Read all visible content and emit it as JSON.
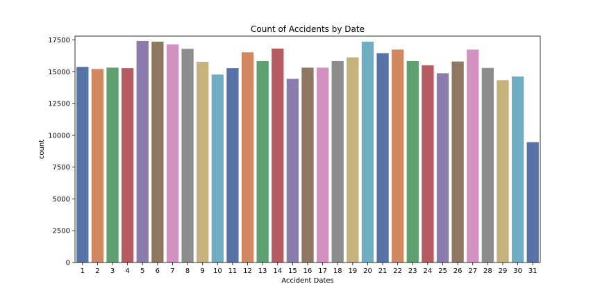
{
  "chart_data": {
    "type": "bar",
    "title": "Count of Accidents by Date",
    "xlabel": "Accident Dates",
    "ylabel": "count",
    "ylim": [
      0,
      17800
    ],
    "yticks": [
      0,
      2500,
      5000,
      7500,
      10000,
      12500,
      15000,
      17500
    ],
    "grid": false,
    "categories": [
      "1",
      "2",
      "3",
      "4",
      "5",
      "6",
      "7",
      "8",
      "9",
      "10",
      "11",
      "12",
      "13",
      "14",
      "15",
      "16",
      "17",
      "18",
      "19",
      "20",
      "21",
      "22",
      "23",
      "24",
      "25",
      "26",
      "27",
      "28",
      "29",
      "30",
      "31"
    ],
    "values": [
      15380,
      15220,
      15320,
      15280,
      17420,
      17360,
      17150,
      16800,
      15780,
      14780,
      15280,
      16530,
      15840,
      16820,
      14440,
      15320,
      15320,
      15840,
      16130,
      17360,
      16460,
      16740,
      15840,
      15500,
      14880,
      15800,
      16740,
      15300,
      14340,
      14620,
      9460
    ],
    "palette": [
      "#5874a6",
      "#d1875f",
      "#5fa071",
      "#b65b61",
      "#8a7cad",
      "#8e7862",
      "#d291c0",
      "#8d8d8d",
      "#c5b37b",
      "#6fadc3"
    ]
  }
}
